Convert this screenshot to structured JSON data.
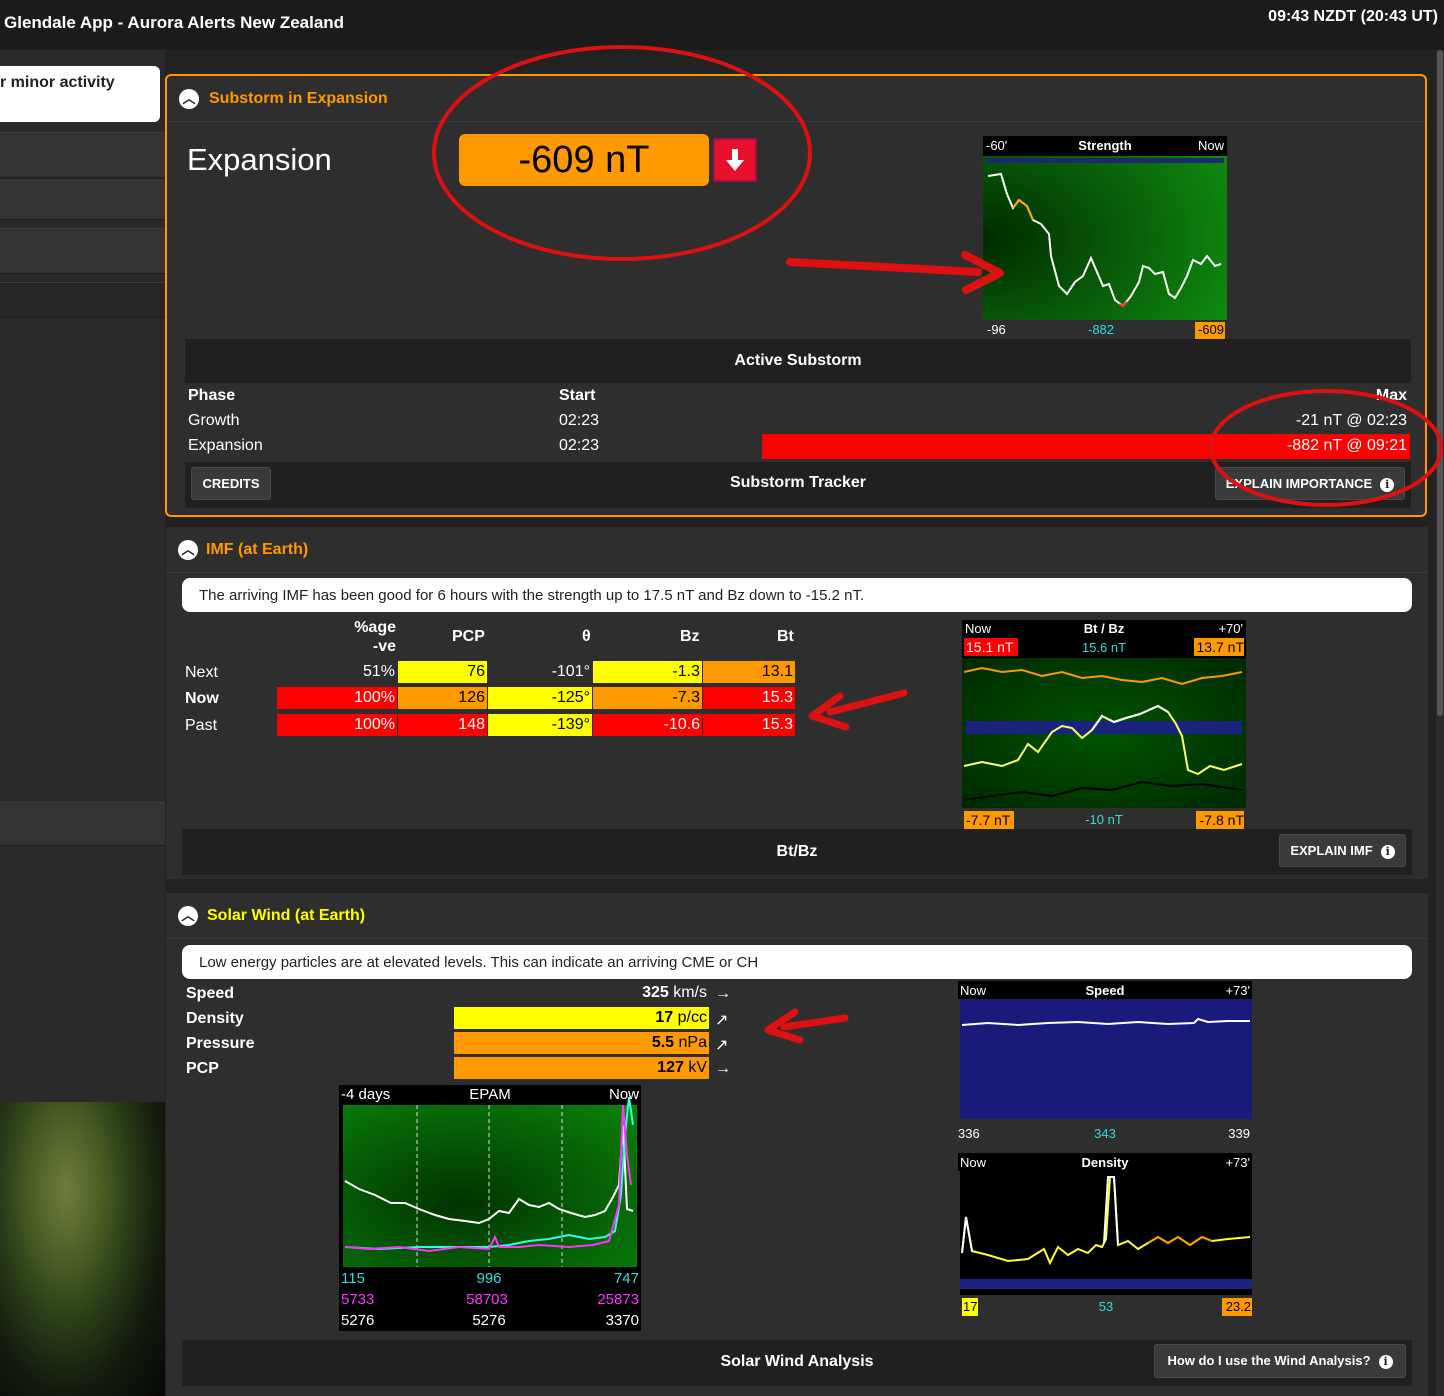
{
  "header": {
    "title": "Glendale App - Aurora Alerts New Zealand",
    "clock": "09:43 NZDT (20:43 UT)"
  },
  "sidebar": {
    "card_text": "r minor activity"
  },
  "substorm": {
    "title": "Substorm in Expansion",
    "phase_label": "Expansion",
    "value": "-609 nT",
    "chart": {
      "left": "-60'",
      "title": "Strength",
      "right": "Now",
      "bottom_left": "-96",
      "bottom_mid": "-882",
      "bottom_right": "-609"
    },
    "active_title": "Active Substorm",
    "table": {
      "col_phase": "Phase",
      "col_start": "Start",
      "col_max": "Max",
      "rows": [
        {
          "phase": "Growth",
          "start": "02:23",
          "max": "-21 nT @ 02:23"
        },
        {
          "phase": "Expansion",
          "start": "02:23",
          "max": "-882 nT @ 09:21"
        }
      ]
    },
    "credits": "CREDITS",
    "tracker": "Substorm Tracker",
    "explain": "EXPLAIN IMPORTANCE"
  },
  "imf": {
    "title": "IMF (at Earth)",
    "summary": "The arriving IMF has been good for 6 hours with the strength up to 17.5 nT and Bz down to -15.2 nT.",
    "headers": {
      "pct1": "%age",
      "pct2": "-ve",
      "pcp": "PCP",
      "theta": "θ",
      "bz": "Bz",
      "bt": "Bt"
    },
    "rows": [
      {
        "label": "Next",
        "pct": "51%",
        "pcp": "76",
        "theta": "-101°",
        "bz": "-1.3",
        "bt": "13.1"
      },
      {
        "label": "Now",
        "pct": "100%",
        "pcp": "126",
        "theta": "-125°",
        "bz": "-7.3",
        "bt": "15.3"
      },
      {
        "label": "Past",
        "pct": "100%",
        "pcp": "148",
        "theta": "-139°",
        "bz": "-10.6",
        "bt": "15.3"
      }
    ],
    "chart": {
      "left": "Now",
      "title": "Bt / Bz",
      "right": "+70'",
      "top_left": "15.1 nT",
      "top_mid": "15.6 nT",
      "top_right": "13.7 nT",
      "bottom_left": "-7.7 nT",
      "bottom_mid": "-10 nT",
      "bottom_right": "-7.8 nT"
    },
    "footer": "Bt/Bz",
    "explain": "EXPLAIN IMF"
  },
  "solar": {
    "title": "Solar Wind (at Earth)",
    "summary": "Low energy particles are at elevated levels. This can indicate an arriving CME or CH",
    "rows": [
      {
        "label": "Speed",
        "value": "325",
        "unit": " km/s",
        "arrow": "→"
      },
      {
        "label": "Density",
        "value": "17",
        "unit": " p/cc",
        "arrow": "↗"
      },
      {
        "label": "Pressure",
        "value": "5.5",
        "unit": " nPa",
        "arrow": "↗"
      },
      {
        "label": "PCP",
        "value": "127",
        "unit": " kV",
        "arrow": "→"
      }
    ],
    "epam": {
      "left": "-4 days",
      "title": "EPAM",
      "right": "Now",
      "row1": [
        "115",
        "996",
        "747"
      ],
      "row2": [
        "5733",
        "58703",
        "25873"
      ],
      "row3": [
        "5276",
        "5276",
        "3370"
      ]
    },
    "speed_chart": {
      "left": "Now",
      "title": "Speed",
      "right": "+73'",
      "bottom_left": "336",
      "bottom_mid": "343",
      "bottom_right": "339"
    },
    "density_chart": {
      "left": "Now",
      "title": "Density",
      "right": "+73'",
      "bottom_left": "17",
      "bottom_mid": "53",
      "bottom_right": "23.2"
    },
    "footer": "Solar Wind Analysis",
    "explain": "How do I use the Wind Analysis?"
  },
  "colors": {
    "accent": "#ff9900",
    "yellow": "#ffff00",
    "red": "#ff0000",
    "cyan": "#33dddd",
    "magenta": "#ff33ff",
    "annotation": "#dd1111"
  },
  "icons": {
    "collapse": "chevron-up-icon",
    "down": "arrow-down-icon",
    "info": "info-icon"
  }
}
